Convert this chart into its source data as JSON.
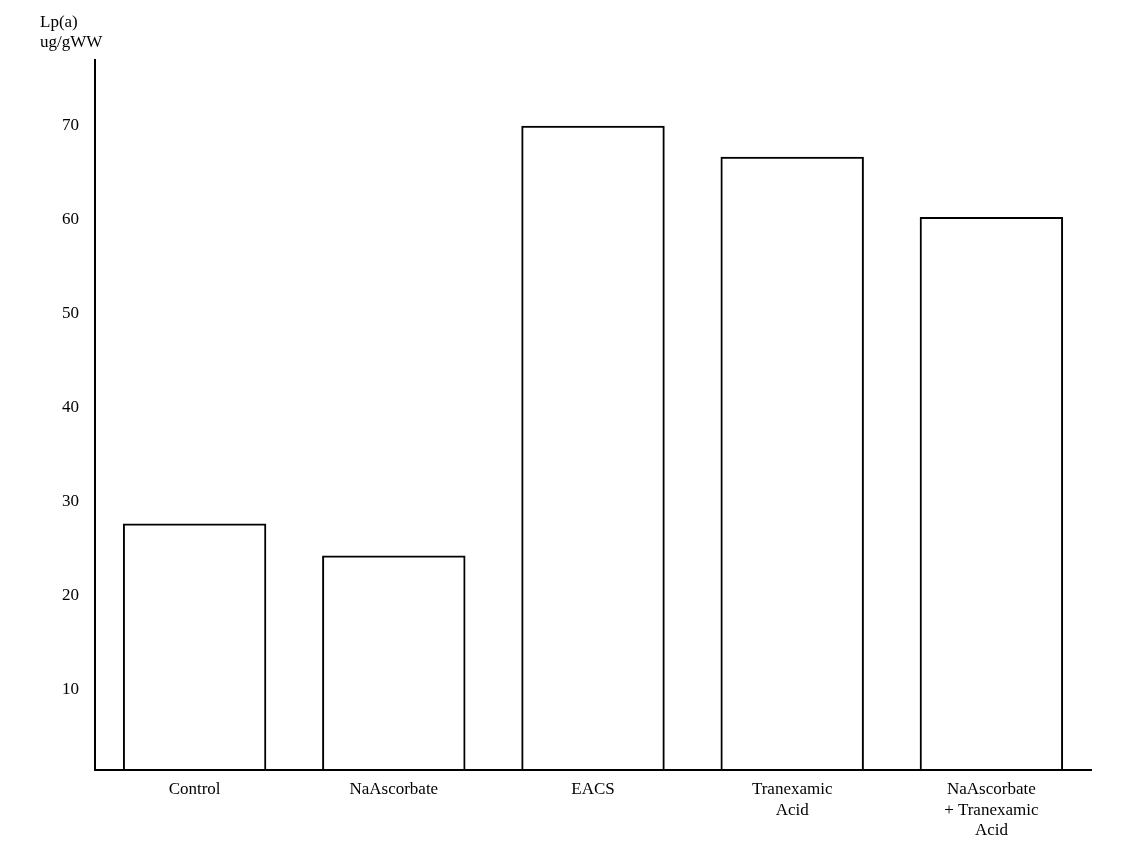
{
  "chart_data": {
    "type": "bar",
    "ylabel": "Lp(a)\nug/gWW",
    "categories": [
      "Control",
      "NaAscorbate",
      "EACS",
      "Tranexamic Acid",
      "NaAscorbate + Tranexamic Acid"
    ],
    "values": [
      27.7,
      24.3,
      70,
      66.7,
      60.3
    ],
    "color": "#000000",
    "ylim": [
      1.5,
      77
    ],
    "yticks": [
      10,
      20,
      30,
      40,
      50,
      60,
      70
    ],
    "grid": false,
    "legend": false
  }
}
